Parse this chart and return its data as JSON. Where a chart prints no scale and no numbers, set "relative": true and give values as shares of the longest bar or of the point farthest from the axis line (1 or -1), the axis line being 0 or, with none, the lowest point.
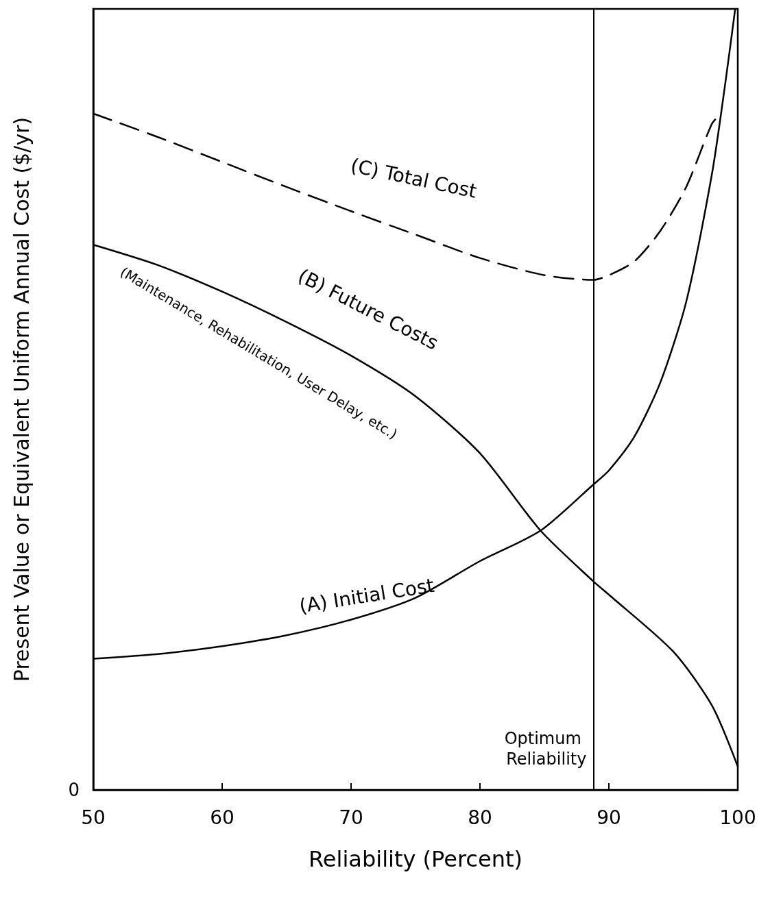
{
  "chart_data": {
    "type": "line",
    "relative": true,
    "xlabel": "Reliability (Percent)",
    "ylabel": "Present Value or Equivalent Uniform Annual Cost ($/yr)",
    "xlim": [
      50,
      100
    ],
    "xticks": [
      50,
      60,
      70,
      80,
      90,
      100
    ],
    "grid": false,
    "legend": false,
    "series": [
      {
        "name": "(A) Initial Cost",
        "color": "#000000",
        "line_style": "solid",
        "x": [
          50,
          55,
          60,
          65,
          70,
          75,
          80,
          84.7,
          88.8,
          90,
          92,
          94,
          96,
          98,
          99,
          99.8
        ],
        "values": [
          0.168,
          0.174,
          0.184,
          0.198,
          0.218,
          0.246,
          0.293,
          0.332,
          0.391,
          0.409,
          0.453,
          0.522,
          0.625,
          0.789,
          0.901,
          1.0
        ]
      },
      {
        "name": "(B) Future Costs",
        "color": "#000000",
        "line_style": "solid",
        "x": [
          50,
          55,
          60,
          65,
          70,
          75,
          80,
          84.7,
          88.8,
          90,
          95,
          98,
          100
        ],
        "values": [
          0.698,
          0.672,
          0.638,
          0.599,
          0.556,
          0.504,
          0.431,
          0.332,
          0.267,
          0.25,
          0.177,
          0.108,
          0.03
        ]
      },
      {
        "name": "(C) Total Cost",
        "color": "#000000",
        "line_style": "dashed",
        "x": [
          50,
          55,
          60,
          65,
          70,
          75,
          80,
          85,
          88.8,
          90,
          92,
          94,
          96,
          98,
          98.7
        ],
        "values": [
          0.866,
          0.836,
          0.804,
          0.772,
          0.741,
          0.711,
          0.681,
          0.659,
          0.653,
          0.659,
          0.677,
          0.716,
          0.772,
          0.853,
          0.866
        ]
      }
    ],
    "ref_lines": [
      {
        "axis": "x",
        "value": 88.8,
        "label": "Optimum Reliability"
      }
    ],
    "annotations": [
      "(Maintenance, Rehabilitation, User Delay, etc.)",
      "0"
    ]
  }
}
